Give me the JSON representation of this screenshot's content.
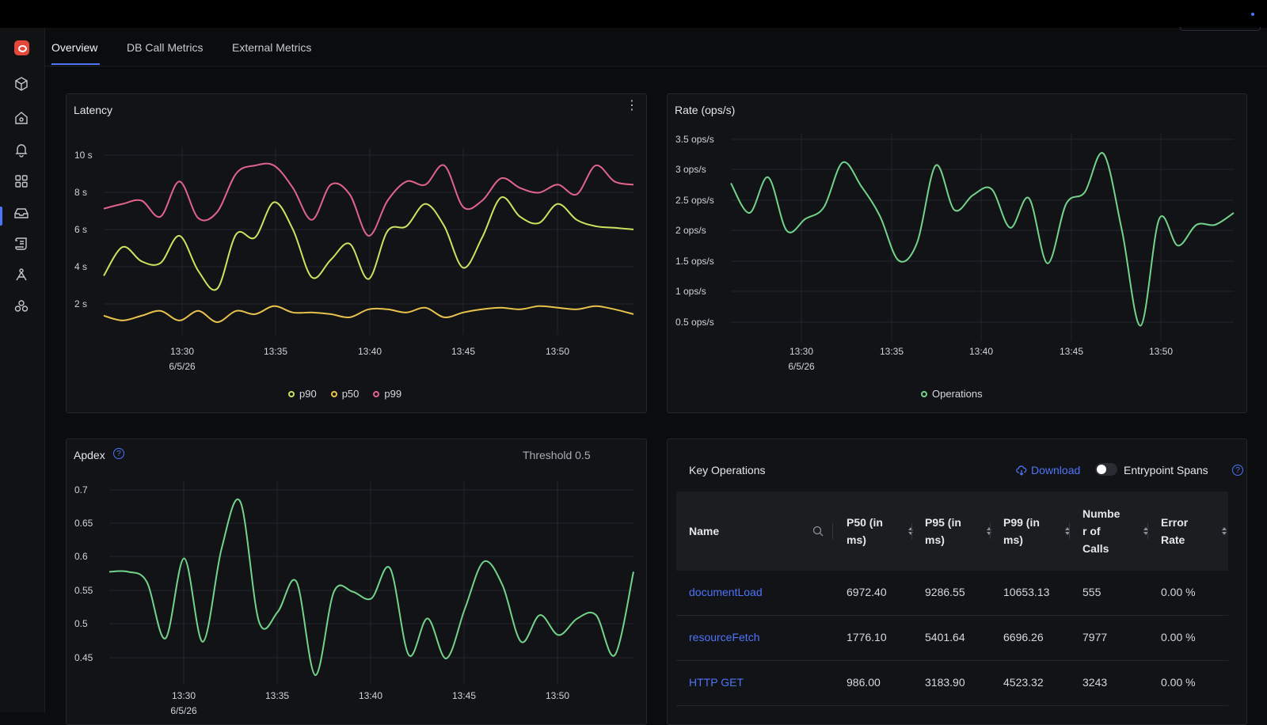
{
  "tabs": [
    {
      "label": "Overview",
      "active": true
    },
    {
      "label": "DB Call Metrics",
      "active": false
    },
    {
      "label": "External Metrics",
      "active": false
    }
  ],
  "sidebar": {
    "icons": [
      "logo-icon",
      "services-cube-icon",
      "home-icon",
      "alerts-bell-icon",
      "dashboards-grid-icon",
      "inbox-icon",
      "logs-icon",
      "traces-icon",
      "integrations-icon"
    ],
    "active_index": 5
  },
  "latency": {
    "title": "Latency",
    "legend": [
      "p90",
      "p50",
      "p99"
    ]
  },
  "rate": {
    "title": "Rate (ops/s)",
    "legend": [
      "Operations"
    ]
  },
  "apdex": {
    "title": "Apdex",
    "threshold": "Threshold 0.5"
  },
  "chart_data": [
    {
      "type": "line",
      "title": "Latency",
      "x": [
        "13:27",
        "13:28",
        "13:29",
        "13:30",
        "13:31",
        "13:32",
        "13:33",
        "13:34",
        "13:35",
        "13:36",
        "13:37",
        "13:38",
        "13:39",
        "13:40",
        "13:41",
        "13:42",
        "13:43",
        "13:44",
        "13:45",
        "13:46",
        "13:47",
        "13:48",
        "13:49",
        "13:50",
        "13:51",
        "13:52",
        "13:53",
        "13:54",
        "13:55"
      ],
      "x_ticks": [
        "13:30",
        "13:35",
        "13:40",
        "13:45",
        "13:50"
      ],
      "x_date": "6/5/26",
      "y_ticks": [
        "2 s",
        "4 s",
        "6 s",
        "8 s",
        "10 s"
      ],
      "ylim": [
        0.4,
        11
      ],
      "colors": {
        "p90": "#cde360",
        "p50": "#e8c24c",
        "p99": "#e0648a"
      },
      "series": [
        {
          "name": "p90",
          "values": [
            3.5,
            5.3,
            4.4,
            4.3,
            6.0,
            3.8,
            2.7,
            6.1,
            5.9,
            8.1,
            6.4,
            3.4,
            4.5,
            5.5,
            3.3,
            6.3,
            6.6,
            8.0,
            6.6,
            4.0,
            5.9,
            8.4,
            7.2,
            6.8,
            8.0,
            7.0,
            6.6,
            6.5,
            6.4
          ]
        },
        {
          "name": "p50",
          "values": [
            1.0,
            0.7,
            1.0,
            1.3,
            0.7,
            1.3,
            0.6,
            1.3,
            1.1,
            1.6,
            1.2,
            1.2,
            1.1,
            0.9,
            1.4,
            1.4,
            1.2,
            1.5,
            0.9,
            1.2,
            1.4,
            1.5,
            1.4,
            1.6,
            1.5,
            1.4,
            1.6,
            1.4,
            1.1
          ]
        },
        {
          "name": "p99",
          "values": [
            7.7,
            8.0,
            8.2,
            7.2,
            9.4,
            7.1,
            7.5,
            9.9,
            10.4,
            10.4,
            9.0,
            7.0,
            9.2,
            8.6,
            6.0,
            8.2,
            9.4,
            9.2,
            10.4,
            7.8,
            8.2,
            9.6,
            9.0,
            8.7,
            9.2,
            8.6,
            10.4,
            9.4,
            9.2
          ]
        }
      ]
    },
    {
      "type": "line",
      "title": "Rate (ops/s)",
      "x_ticks": [
        "13:30",
        "13:35",
        "13:40",
        "13:45",
        "13:50"
      ],
      "x_date": "6/5/26",
      "y_ticks": [
        "0.5 ops/s",
        "1 ops/s",
        "1.5 ops/s",
        "2 ops/s",
        "2.5 ops/s",
        "3 ops/s",
        "3.5 ops/s"
      ],
      "ylim": [
        0.3,
        3.5
      ],
      "colors": {
        "Operations": "#72d48a"
      },
      "series": [
        {
          "name": "Operations",
          "values": [
            2.8,
            2.3,
            2.9,
            2.0,
            2.2,
            2.4,
            3.15,
            2.75,
            2.25,
            1.5,
            1.8,
            3.1,
            2.35,
            2.6,
            2.7,
            2.05,
            2.55,
            1.45,
            2.45,
            2.65,
            3.3,
            2.0,
            0.4,
            2.2,
            1.75,
            2.1,
            2.1,
            2.3
          ]
        }
      ]
    },
    {
      "type": "line",
      "title": "Apdex",
      "x_ticks": [
        "13:30",
        "13:35",
        "13:40",
        "13:45",
        "13:50"
      ],
      "x_date": "6/5/26",
      "y_ticks": [
        "0.45",
        "0.5",
        "0.55",
        "0.6",
        "0.65",
        "0.7"
      ],
      "ylim": [
        0.43,
        0.71
      ],
      "colors": {
        "Apdex": "#72d48a"
      },
      "series": [
        {
          "values": [
            0.585,
            0.585,
            0.57,
            0.485,
            0.605,
            0.48,
            0.62,
            0.69,
            0.51,
            0.525,
            0.57,
            0.43,
            0.555,
            0.555,
            0.545,
            0.59,
            0.46,
            0.515,
            0.455,
            0.53,
            0.6,
            0.565,
            0.48,
            0.52,
            0.49,
            0.515,
            0.52,
            0.46,
            0.585
          ]
        }
      ]
    }
  ],
  "key_operations": {
    "title": "Key Operations",
    "download_label": "Download",
    "entrypoint_label": "Entrypoint Spans",
    "columns": [
      "Name",
      "P50 (in ms)",
      "P95 (in ms)",
      "P99 (in ms)",
      "Number of Calls",
      "Error Rate"
    ],
    "column_lines": [
      [
        "Name"
      ],
      [
        "P50 (in",
        "ms)"
      ],
      [
        "P95 (in",
        "ms)"
      ],
      [
        "P99 (in",
        "ms)"
      ],
      [
        "Numbe",
        "r of",
        "Calls"
      ],
      [
        "Error",
        "Rate"
      ]
    ],
    "rows": [
      {
        "name": "documentLoad",
        "p50": "6972.40",
        "p95": "9286.55",
        "p99": "10653.13",
        "calls": "555",
        "error": "0.00 %"
      },
      {
        "name": "resourceFetch",
        "p50": "1776.10",
        "p95": "5401.64",
        "p99": "6696.26",
        "calls": "7977",
        "error": "0.00 %"
      },
      {
        "name": "HTTP GET",
        "p50": "986.00",
        "p95": "3183.90",
        "p99": "4523.32",
        "calls": "3243",
        "error": "0.00 %"
      }
    ]
  }
}
